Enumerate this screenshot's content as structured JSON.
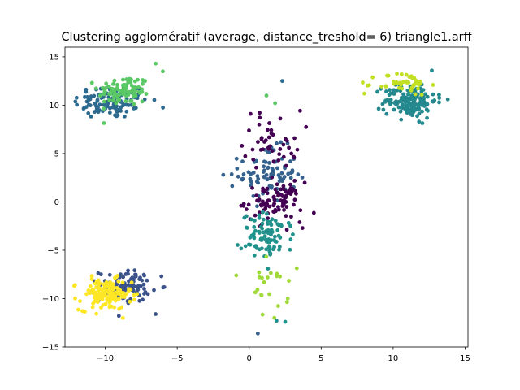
{
  "chart_data": {
    "type": "scatter",
    "title": "Clustering agglomératif (average, distance_treshold= 6) triangle1.arff",
    "xlabel": "",
    "ylabel": "",
    "xlim": [
      -12.8,
      15.2
    ],
    "ylim": [
      -15,
      16
    ],
    "xticks": [
      -10,
      -5,
      0,
      5,
      10,
      15
    ],
    "yticks": [
      -15,
      -10,
      -5,
      0,
      5,
      10,
      15
    ],
    "xtick_labels": [
      "−10",
      "−5",
      "0",
      "5",
      "10",
      "15"
    ],
    "ytick_labels": [
      "−15",
      "−10",
      "−5",
      "0",
      "5",
      "10",
      "15"
    ],
    "grid": false,
    "legend": "none",
    "clusters": [
      {
        "color": "#2c6b8f",
        "center": [
          -9.6,
          10.4
        ],
        "spread": [
          1.3,
          0.9
        ],
        "count": 120
      },
      {
        "color": "#5ac864",
        "center": [
          -8.7,
          11.5
        ],
        "spread": [
          0.9,
          0.8
        ],
        "count": 100
      },
      {
        "color": "#34618d",
        "center": [
          1.3,
          2.8
        ],
        "spread": [
          1.0,
          1.4
        ],
        "count": 90
      },
      {
        "color": "#440154",
        "center": [
          1.6,
          6.5
        ],
        "spread": [
          1.0,
          1.5
        ],
        "count": 45
      },
      {
        "color": "#440154",
        "center": [
          1.7,
          0.0
        ],
        "spread": [
          1.0,
          1.0
        ],
        "count": 90
      },
      {
        "color": "#21918c",
        "center": [
          1.3,
          -3.6
        ],
        "spread": [
          0.9,
          1.2
        ],
        "count": 90
      },
      {
        "color": "#a0da39",
        "center": [
          1.5,
          -9.0
        ],
        "spread": [
          0.6,
          1.6
        ],
        "count": 22
      },
      {
        "color": "#3b528b",
        "center": [
          -8.6,
          -8.7
        ],
        "spread": [
          0.9,
          0.8
        ],
        "count": 110
      },
      {
        "color": "#fde725",
        "center": [
          -10.0,
          -9.6
        ],
        "spread": [
          0.9,
          0.8
        ],
        "count": 140
      },
      {
        "color": "#23898e",
        "center": [
          11.2,
          10.5
        ],
        "spread": [
          0.9,
          0.9
        ],
        "count": 150
      },
      {
        "color": "#c2df23",
        "center": [
          10.7,
          12.2
        ],
        "spread": [
          0.9,
          0.6
        ],
        "count": 45
      }
    ],
    "extra_points": [
      {
        "x": 2.3,
        "y": 12.5,
        "color": "#2c6b8f"
      },
      {
        "x": 1.2,
        "y": 11.0,
        "color": "#5ac864"
      },
      {
        "x": 1.8,
        "y": 10.2,
        "color": "#5ac864"
      },
      {
        "x": -6.5,
        "y": 14.3,
        "color": "#5ac864"
      },
      {
        "x": -6.0,
        "y": 13.5,
        "color": "#5ac864"
      },
      {
        "x": -1.8,
        "y": 2.8,
        "color": "#34618d"
      },
      {
        "x": -0.9,
        "y": -7.6,
        "color": "#a0da39"
      },
      {
        "x": 0.6,
        "y": -13.6,
        "color": "#34618d"
      },
      {
        "x": 2.5,
        "y": -12.4,
        "color": "#21918c"
      },
      {
        "x": 1.9,
        "y": -12.3,
        "color": "#21918c"
      },
      {
        "x": 3.7,
        "y": -2.7,
        "color": "#440154"
      },
      {
        "x": -12.1,
        "y": -8.6,
        "color": "#fde725"
      },
      {
        "x": -6.5,
        "y": -11.6,
        "color": "#3b528b"
      },
      {
        "x": -6.1,
        "y": -7.7,
        "color": "#3b528b"
      },
      {
        "x": 8.0,
        "y": 11.2,
        "color": "#c2df23"
      },
      {
        "x": 13.8,
        "y": 10.6,
        "color": "#23898e"
      },
      {
        "x": 11.8,
        "y": 8.3,
        "color": "#23898e"
      }
    ]
  }
}
